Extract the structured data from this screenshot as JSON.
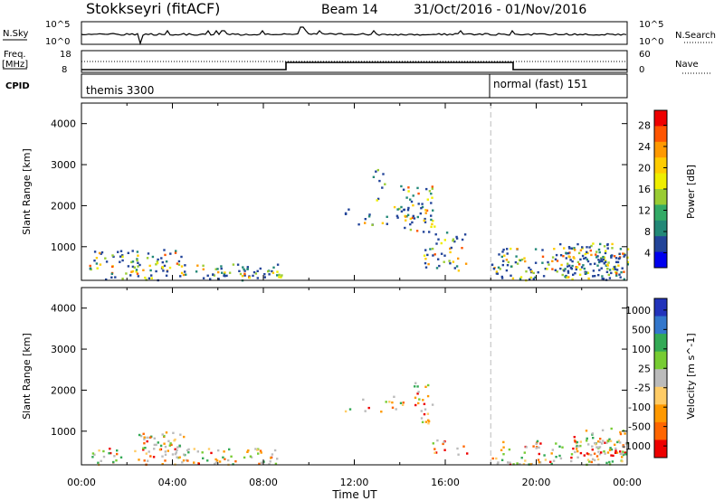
{
  "header": {
    "station": "Stokkseyri (fitACF)",
    "beam": "Beam 14",
    "daterange": "31/Oct/2016 - 01/Nov/2016"
  },
  "panels": {
    "nsky_label": "N.Sky",
    "nsky_ticks": [
      "10^5",
      "10^0"
    ],
    "nsearch_label": "N.Search",
    "nsearch_ticks": [
      "10^5",
      "10^0"
    ],
    "freq_label_1": "Freq.",
    "freq_label_2": "[MHz]",
    "freq_ticks": [
      "18",
      "8"
    ],
    "nave_label": "Nave",
    "nave_ticks": [
      "60",
      "0"
    ],
    "cpid_label": "CPID",
    "cpid_1": "themis 3300",
    "cpid_2": "normal (fast) 151"
  },
  "chart_data": [
    {
      "type": "heatmap",
      "title": "",
      "xlabel": "Time UT",
      "ylabel": "Slant Range [km]",
      "xlim": [
        0,
        24
      ],
      "ylim": [
        180,
        4500
      ],
      "x_ticks": [
        "00:00",
        "04:00",
        "08:00",
        "12:00",
        "16:00",
        "20:00",
        "00:00"
      ],
      "y_ticks": [
        "1000",
        "2000",
        "3000",
        "4000"
      ],
      "colorbar": {
        "label": "Power [dB]",
        "ticks": [
          "28",
          "24",
          "20",
          "16",
          "12",
          "8",
          "4"
        ],
        "colors": [
          "#ee0000",
          "#ff5500",
          "#ff9900",
          "#ffcc00",
          "#eeee00",
          "#99cc33",
          "#33aa66",
          "#228877",
          "#224499",
          "#0000ee"
        ],
        "range": [
          0,
          30
        ]
      },
      "marker_time": 18.0,
      "scatter_regions": [
        {
          "t0": 0.3,
          "t1": 8.8,
          "r0": 200,
          "r1": 600,
          "fill": 0.55
        },
        {
          "t0": 0.5,
          "t1": 4.5,
          "r0": 600,
          "r1": 950,
          "fill": 0.5
        },
        {
          "t0": 11.5,
          "t1": 14.5,
          "r0": 1500,
          "r1": 2000,
          "fill": 0.25
        },
        {
          "t0": 12.8,
          "t1": 13.4,
          "r0": 2100,
          "r1": 3000,
          "fill": 0.25
        },
        {
          "t0": 14.0,
          "t1": 15.5,
          "r0": 1400,
          "r1": 2500,
          "fill": 0.5
        },
        {
          "t0": 15.0,
          "t1": 17.0,
          "r0": 400,
          "r1": 1400,
          "fill": 0.35
        },
        {
          "t0": 18.0,
          "t1": 24.0,
          "r0": 200,
          "r1": 1000,
          "fill": 0.5
        },
        {
          "t0": 21.0,
          "t1": 24.0,
          "r0": 300,
          "r1": 1100,
          "fill": 0.6
        }
      ]
    },
    {
      "type": "heatmap",
      "title": "",
      "xlabel": "Time UT",
      "ylabel": "Slant Range [km]",
      "xlim": [
        0,
        24
      ],
      "ylim": [
        180,
        4500
      ],
      "x_ticks": [
        "00:00",
        "04:00",
        "08:00",
        "12:00",
        "16:00",
        "20:00",
        "00:00"
      ],
      "y_ticks": [
        "1000",
        "2000",
        "3000",
        "4000"
      ],
      "colorbar": {
        "label": "Velocity [m s^-1]",
        "ticks": [
          "1000",
          "500",
          "100",
          "25",
          "-25",
          "-100",
          "-500",
          "-1000"
        ],
        "colors": [
          "#2233bb",
          "#3377cc",
          "#33aa55",
          "#77cc33",
          "#bbbbbb",
          "#ffcc66",
          "#ff9900",
          "#ff6600",
          "#ee0000"
        ],
        "range": [
          -1000,
          1000
        ]
      },
      "marker_time": 18.0,
      "scatter_regions": [
        {
          "t0": 0.3,
          "t1": 8.8,
          "r0": 200,
          "r1": 600,
          "fill": 0.45
        },
        {
          "t0": 2.5,
          "t1": 4.5,
          "r0": 500,
          "r1": 1000,
          "fill": 0.7
        },
        {
          "t0": 11.5,
          "t1": 14.5,
          "r0": 1500,
          "r1": 1900,
          "fill": 0.2
        },
        {
          "t0": 14.6,
          "t1": 15.4,
          "r0": 1200,
          "r1": 2200,
          "fill": 0.5
        },
        {
          "t0": 15.3,
          "t1": 17.0,
          "r0": 450,
          "r1": 800,
          "fill": 0.35
        },
        {
          "t0": 18.0,
          "t1": 24.0,
          "r0": 200,
          "r1": 800,
          "fill": 0.45
        },
        {
          "t0": 21.5,
          "t1": 24.0,
          "r0": 400,
          "r1": 1100,
          "fill": 0.5
        }
      ]
    }
  ]
}
